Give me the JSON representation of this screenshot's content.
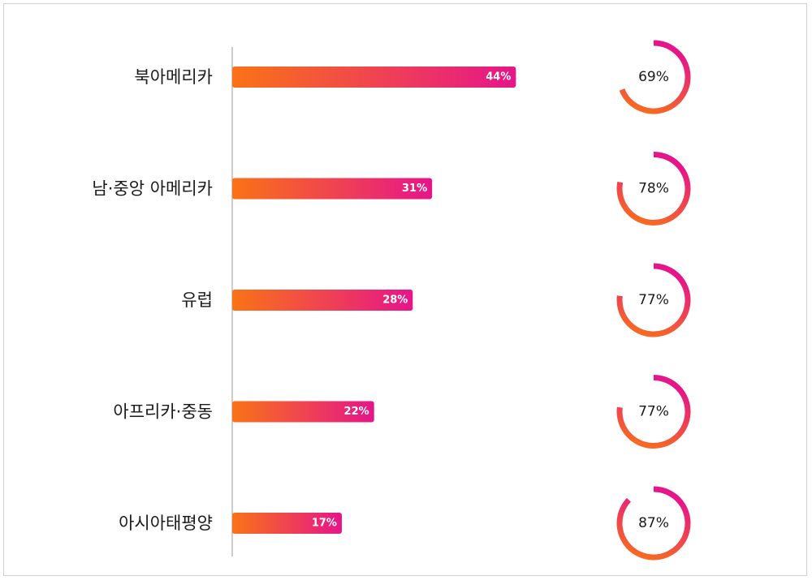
{
  "chart_data": {
    "type": "bar",
    "orientation": "horizontal",
    "categories": [
      "북아메리카",
      "남·중앙 아메리카",
      "유럽",
      "아프리카·중동",
      "아시아태평양"
    ],
    "series": [
      {
        "values": [
          44,
          31,
          28,
          22,
          17
        ]
      },
      {
        "values": [
          69,
          78,
          77,
          77,
          87
        ]
      }
    ],
    "bar_labels": [
      "44%",
      "31%",
      "28%",
      "22%",
      "17%"
    ],
    "ring_labels": [
      "69%",
      "78%",
      "77%",
      "77%",
      "87%"
    ],
    "xlim": [
      0,
      100
    ],
    "ring_range": [
      0,
      100
    ],
    "title": "",
    "xlabel": "",
    "ylabel": "",
    "grid": false,
    "colors": {
      "gradient_start": "#f97316",
      "gradient_end": "#e6158a",
      "axis": "#999999",
      "frame": "#d0d0d0"
    }
  }
}
